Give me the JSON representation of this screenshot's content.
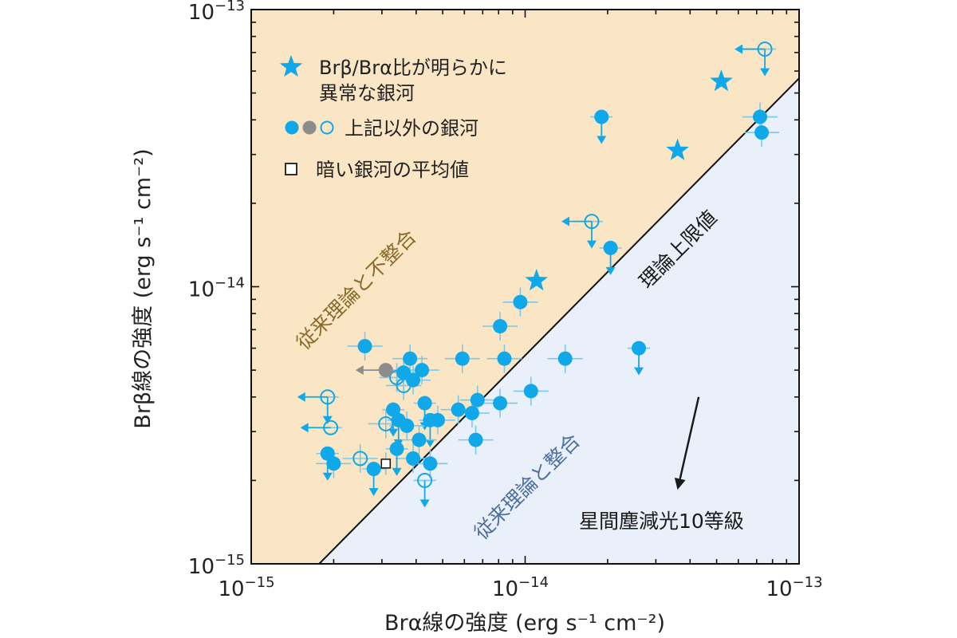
{
  "chart_data": {
    "type": "scatter",
    "title": "",
    "xlabel": "Brα線の強度 (erg s⁻¹ cm⁻²)",
    "ylabel": "Brβ線の強度 (erg s⁻¹ cm⁻²)",
    "xscale": "log",
    "yscale": "log",
    "xlim": [
      1e-15,
      1e-13
    ],
    "ylim": [
      1e-15,
      1e-13
    ],
    "grid": false,
    "legend_position": "top-left",
    "colors": {
      "inconsistent_region": "#fae6c4",
      "consistent_region": "#e9f0fa",
      "marker": "#10a8e8",
      "marker_gray": "#8c8c8c",
      "errorbar": "#7cc8ec",
      "limit_line": "#111111",
      "text_inconsistent": "#8a6a2a",
      "text_consistent": "#4d6fa0",
      "text_dark": "#1a1a1a"
    },
    "x_ticks": [
      {
        "value": 1e-15,
        "base": "10",
        "exp": "−15"
      },
      {
        "value": 1e-14,
        "base": "10",
        "exp": "−14"
      },
      {
        "value": 1e-13,
        "base": "10",
        "exp": "−13"
      }
    ],
    "y_ticks": [
      {
        "value": 1e-15,
        "base": "10",
        "exp": "−15"
      },
      {
        "value": 1e-14,
        "base": "10",
        "exp": "−14"
      },
      {
        "value": 1e-13,
        "base": "10",
        "exp": "−13"
      }
    ],
    "legend": [
      {
        "marker": "star",
        "text_lines": [
          "Brβ/Brα比が明らかに",
          "異常な銀河"
        ]
      },
      {
        "marker": "circles",
        "text_lines": [
          "上記以外の銀河"
        ]
      },
      {
        "marker": "square",
        "text_lines": [
          "暗い銀河の平均値"
        ]
      }
    ],
    "annotations": {
      "inconsistent": "従来理論と不整合",
      "consistent": "従来理論と整合",
      "limit": "理論上限値",
      "extinction": "星間塵減光10等級"
    },
    "theoretical_limit": {
      "ratio": 0.565
    },
    "extinction_arrow": {
      "from": [
        4.3e-14,
        4e-15
      ],
      "to": [
        3.6e-14,
        1.85e-15
      ]
    },
    "series": [
      {
        "name": "Brβ/Brα比が明らかに異常な銀河",
        "marker": "star",
        "points": [
          {
            "x": 1.1e-14,
            "y": 1.05e-14
          },
          {
            "x": 3.6e-14,
            "y": 3.1e-14
          },
          {
            "x": 5.2e-14,
            "y": 5.5e-14
          }
        ]
      },
      {
        "name": "上記以外の銀河",
        "marker": "circle",
        "points": [
          {
            "x": 7.5e-14,
            "y": 7.2e-14,
            "open": true,
            "xlim": true,
            "ylim": true
          },
          {
            "x": 1.75e-14,
            "y": 1.72e-14,
            "open": true,
            "xlim": true,
            "ylim": true
          },
          {
            "x": 1.9e-14,
            "y": 4.1e-14,
            "ylim": true
          },
          {
            "x": 7.2e-14,
            "y": 4.1e-14
          },
          {
            "x": 7.3e-14,
            "y": 3.6e-14
          },
          {
            "x": 2.05e-14,
            "y": 1.38e-14,
            "ylim": true
          },
          {
            "x": 9.6e-15,
            "y": 8.8e-15
          },
          {
            "x": 8.1e-15,
            "y": 7.2e-15
          },
          {
            "x": 2.6e-14,
            "y": 6e-15,
            "ylim": true
          },
          {
            "x": 1.4e-14,
            "y": 5.5e-15
          },
          {
            "x": 8.4e-15,
            "y": 5.5e-15
          },
          {
            "x": 5.9e-15,
            "y": 5.5e-15
          },
          {
            "x": 1.05e-14,
            "y": 4.2e-15
          },
          {
            "x": 8.1e-15,
            "y": 3.8e-15
          },
          {
            "x": 6.7e-15,
            "y": 3.9e-15
          },
          {
            "x": 6.4e-15,
            "y": 3.5e-15
          },
          {
            "x": 5.7e-15,
            "y": 3.6e-15
          },
          {
            "x": 6.6e-15,
            "y": 2.8e-15
          },
          {
            "x": 4.8e-15,
            "y": 3.3e-15
          },
          {
            "x": 2.6e-15,
            "y": 6.1e-15
          },
          {
            "x": 3.8e-15,
            "y": 5.5e-15
          },
          {
            "x": 3.6e-15,
            "y": 4.9e-15
          },
          {
            "x": 4.2e-15,
            "y": 5e-15
          },
          {
            "x": 3.9e-15,
            "y": 4.6e-15
          },
          {
            "x": 3.4e-15,
            "y": 4.7e-15,
            "open": true
          },
          {
            "x": 3.6e-15,
            "y": 4.4e-15,
            "open": true
          },
          {
            "x": 3.3e-15,
            "y": 3.6e-15,
            "ylim": true
          },
          {
            "x": 3.45e-15,
            "y": 3.3e-15,
            "ylim": true
          },
          {
            "x": 4.3e-15,
            "y": 3.8e-15,
            "ylim": true
          },
          {
            "x": 4.5e-15,
            "y": 3.3e-15,
            "ylim": true
          },
          {
            "x": 3.1e-15,
            "y": 3.2e-15,
            "open": true
          },
          {
            "x": 3.7e-15,
            "y": 3.15e-15
          },
          {
            "x": 4.1e-15,
            "y": 2.8e-15
          },
          {
            "x": 3.9e-15,
            "y": 2.4e-15
          },
          {
            "x": 4.5e-15,
            "y": 2.3e-15
          },
          {
            "x": 3.4e-15,
            "y": 2.6e-15,
            "ylim": true
          },
          {
            "x": 2.8e-15,
            "y": 2.2e-15,
            "ylim": true
          },
          {
            "x": 4.3e-15,
            "y": 2e-15,
            "open": true,
            "ylim": true
          },
          {
            "x": 2.5e-15,
            "y": 2.4e-15,
            "open": true
          },
          {
            "x": 1.9e-15,
            "y": 4e-15,
            "open": true,
            "xlim": true,
            "ylim": true
          },
          {
            "x": 1.95e-15,
            "y": 3.1e-15,
            "open": true,
            "xlim": true
          },
          {
            "x": 1.9e-15,
            "y": 2.5e-15,
            "ylim": true
          },
          {
            "x": 2e-15,
            "y": 2.3e-15
          }
        ]
      },
      {
        "name": "上記以外の銀河 (灰色)",
        "marker": "circle-gray",
        "points": [
          {
            "x": 3.1e-15,
            "y": 5e-15,
            "xlim": true
          }
        ]
      },
      {
        "name": "暗い銀河の平均値",
        "marker": "square",
        "points": [
          {
            "x": 3.1e-15,
            "y": 2.3e-15
          }
        ]
      }
    ]
  }
}
